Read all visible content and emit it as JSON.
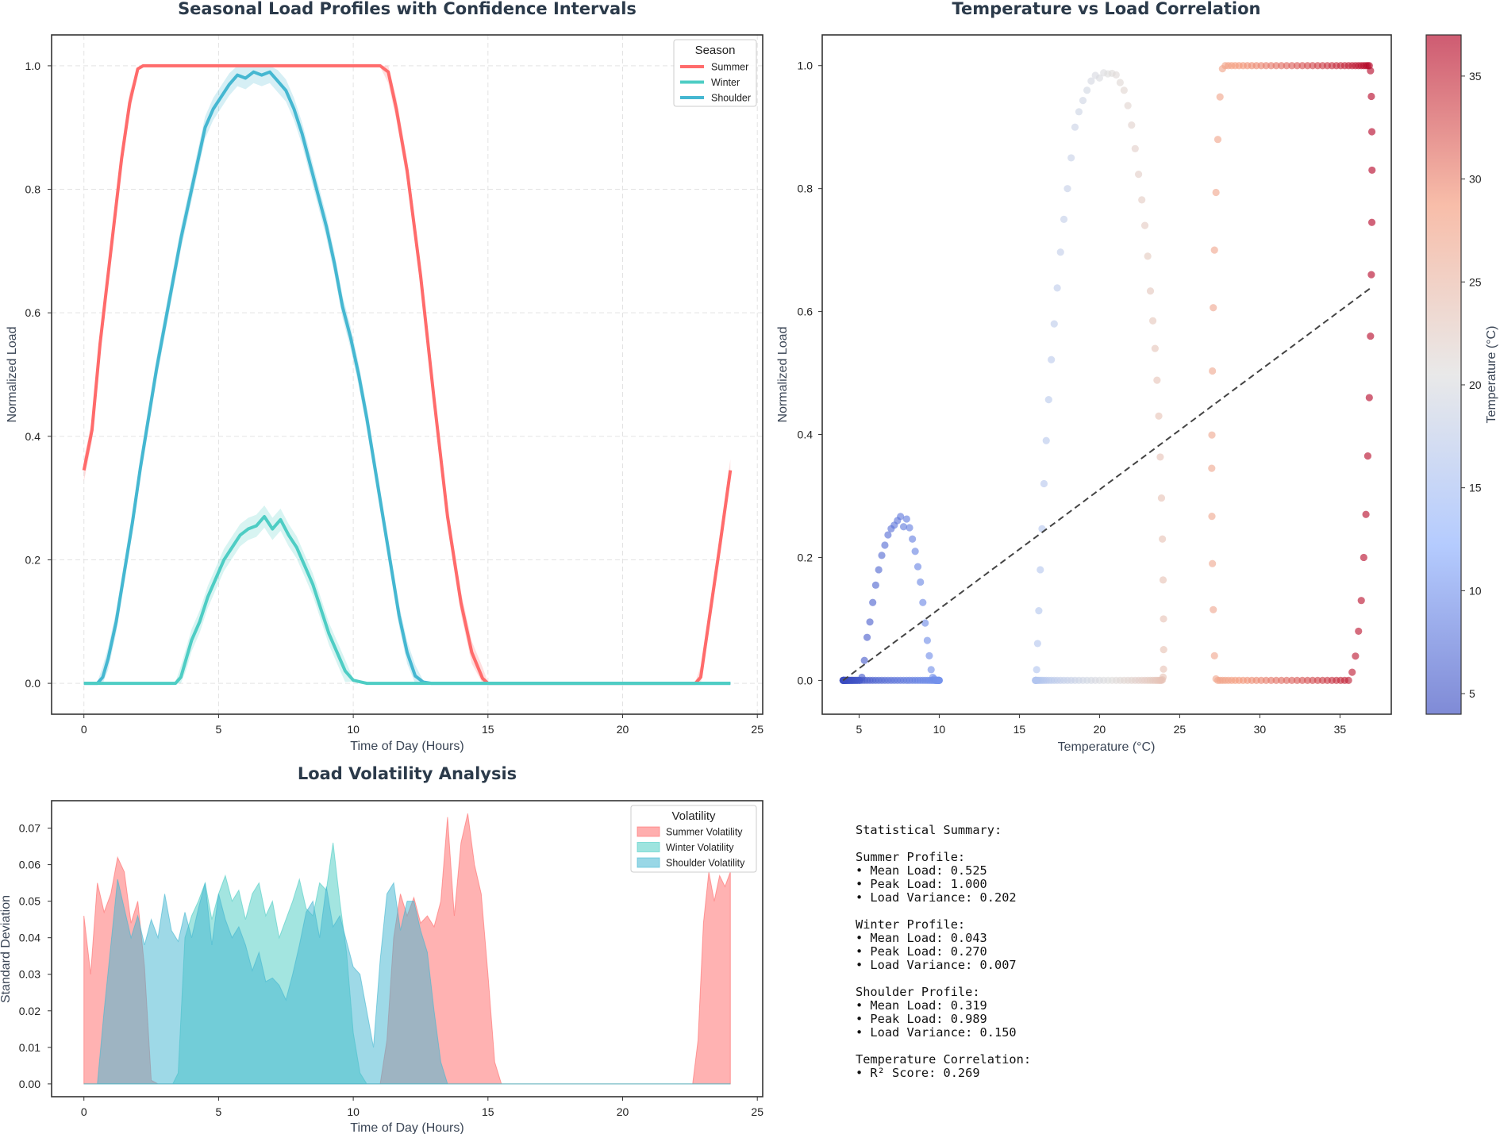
{
  "chart_data": [
    {
      "type": "line",
      "title": "Seasonal Load Profiles with Confidence Intervals",
      "xlabel": "Time of Day (Hours)",
      "ylabel": "Normalized Load",
      "xlim": [
        -1.2,
        25.2
      ],
      "ylim": [
        -0.05,
        1.05
      ],
      "xticks": [
        0,
        5,
        10,
        15,
        20,
        25
      ],
      "yticks": [
        0.0,
        0.2,
        0.4,
        0.6,
        0.8,
        1.0
      ],
      "grid": true,
      "legend": {
        "title": "Season",
        "position": "top-right",
        "entries": [
          "Summer",
          "Winter",
          "Shoulder"
        ]
      },
      "series": [
        {
          "name": "Summer",
          "color": "#ff6b6b",
          "x": [
            0,
            0.3,
            0.6,
            1.0,
            1.4,
            1.7,
            2.0,
            2.2,
            2.5,
            5,
            8,
            10.5,
            11.0,
            11.3,
            11.6,
            12.0,
            12.5,
            13.0,
            13.5,
            14.0,
            14.4,
            14.8,
            15.0,
            15.5,
            20,
            22.7,
            22.9,
            23.2,
            23.6,
            24.0
          ],
          "y": [
            0.345,
            0.41,
            0.55,
            0.7,
            0.85,
            0.94,
            0.995,
            1.0,
            1.0,
            1.0,
            1.0,
            1.0,
            1.0,
            0.99,
            0.93,
            0.83,
            0.66,
            0.46,
            0.27,
            0.13,
            0.05,
            0.008,
            0.0,
            0.0,
            0.0,
            0.0,
            0.01,
            0.1,
            0.22,
            0.345
          ]
        },
        {
          "name": "Winter",
          "color": "#4ecdc4",
          "x": [
            0,
            3.4,
            3.6,
            3.8,
            4.0,
            4.3,
            4.6,
            4.9,
            5.2,
            5.5,
            5.8,
            6.1,
            6.4,
            6.7,
            7.0,
            7.3,
            7.6,
            7.9,
            8.2,
            8.5,
            8.8,
            9.1,
            9.4,
            9.7,
            10.0,
            10.3,
            10.5,
            11,
            24
          ],
          "y": [
            0.0,
            0.0,
            0.01,
            0.04,
            0.07,
            0.1,
            0.14,
            0.17,
            0.2,
            0.22,
            0.24,
            0.25,
            0.255,
            0.27,
            0.25,
            0.265,
            0.24,
            0.22,
            0.19,
            0.16,
            0.12,
            0.08,
            0.05,
            0.02,
            0.005,
            0.002,
            0.0,
            0.0,
            0.0
          ]
        },
        {
          "name": "Shoulder",
          "color": "#45b7d1",
          "x": [
            0,
            0.5,
            0.7,
            0.9,
            1.2,
            1.5,
            1.8,
            2.1,
            2.4,
            2.7,
            3.0,
            3.3,
            3.6,
            3.9,
            4.2,
            4.5,
            4.8,
            5.1,
            5.4,
            5.7,
            6.0,
            6.3,
            6.6,
            6.9,
            7.2,
            7.5,
            7.8,
            8.1,
            8.4,
            8.7,
            9.0,
            9.3,
            9.6,
            9.9,
            10.2,
            10.5,
            10.8,
            11.1,
            11.4,
            11.7,
            12.0,
            12.3,
            12.6,
            12.9,
            13.2,
            13.5,
            24
          ],
          "y": [
            0.0,
            0.0,
            0.01,
            0.04,
            0.1,
            0.18,
            0.26,
            0.35,
            0.43,
            0.51,
            0.58,
            0.65,
            0.72,
            0.78,
            0.84,
            0.9,
            0.93,
            0.95,
            0.97,
            0.985,
            0.98,
            0.99,
            0.985,
            0.99,
            0.975,
            0.96,
            0.93,
            0.89,
            0.84,
            0.79,
            0.74,
            0.68,
            0.61,
            0.56,
            0.5,
            0.43,
            0.35,
            0.27,
            0.19,
            0.11,
            0.05,
            0.012,
            0.002,
            0.0,
            0.0,
            0.0,
            0.0
          ]
        }
      ]
    },
    {
      "type": "scatter",
      "title": "Temperature vs Load Correlation",
      "xlabel": "Temperature (°C)",
      "ylabel": "Normalized Load",
      "xlim": [
        2.7,
        38.2
      ],
      "ylim": [
        -0.055,
        1.05
      ],
      "xticks": [
        5,
        10,
        15,
        20,
        25,
        30,
        35
      ],
      "yticks": [
        0.0,
        0.2,
        0.4,
        0.6,
        0.8,
        1.0
      ],
      "grid": false,
      "colormap": "coolwarm",
      "colorbar": {
        "label": "Temperature (°C)",
        "range": [
          4,
          37
        ],
        "ticks": [
          5,
          10,
          15,
          20,
          25,
          30,
          35
        ]
      },
      "trendline": {
        "x": [
          4,
          37
        ],
        "y": [
          0.0,
          0.64
        ],
        "style": "dashed",
        "color": "#444444"
      },
      "clusters": [
        {
          "season": "Winter",
          "temp_range": [
            4,
            10
          ],
          "peak_load": 0.27
        },
        {
          "season": "Shoulder",
          "temp_range": [
            16,
            24
          ],
          "peak_load": 0.989
        },
        {
          "season": "Summer",
          "temp_range": [
            27,
            37
          ],
          "peak_load": 1.0
        }
      ]
    },
    {
      "type": "area",
      "title": "Load Volatility Analysis",
      "xlabel": "Time of Day (Hours)",
      "ylabel": "Standard Deviation",
      "xlim": [
        -1.2,
        25.2
      ],
      "ylim": [
        -0.0035,
        0.0775
      ],
      "xticks": [
        0,
        5,
        10,
        15,
        20,
        25
      ],
      "yticks": [
        0.0,
        0.01,
        0.02,
        0.03,
        0.04,
        0.05,
        0.06,
        0.07
      ],
      "grid": false,
      "legend": {
        "title": "Volatility",
        "position": "top-right",
        "entries": [
          "Summer Volatility",
          "Winter Volatility",
          "Shoulder Volatility"
        ]
      },
      "series": [
        {
          "name": "Summer Volatility",
          "color": "#ff6b6b",
          "x": [
            0,
            0.25,
            0.5,
            0.75,
            1.0,
            1.25,
            1.5,
            1.75,
            2.0,
            2.25,
            2.5,
            2.75,
            3.0,
            3.25,
            3.5,
            3.75,
            4.0,
            4.25,
            4.5,
            4.75,
            5.0,
            5.25,
            5.5,
            5.75,
            6.0,
            6.25,
            6.5,
            6.75,
            7.0,
            7.25,
            7.5,
            7.75,
            8.0,
            8.25,
            8.5,
            8.75,
            9.0,
            9.25,
            9.5,
            9.75,
            10.0,
            10.25,
            10.5,
            10.75,
            11.0,
            11.25,
            11.5,
            11.75,
            12.0,
            12.25,
            12.5,
            12.75,
            13.0,
            13.25,
            13.5,
            13.75,
            14.0,
            14.25,
            14.5,
            14.75,
            15.0,
            15.25,
            15.5,
            22.6,
            22.8,
            23.0,
            23.2,
            23.4,
            23.6,
            23.8,
            24.0
          ],
          "y": [
            0.046,
            0.03,
            0.055,
            0.047,
            0.052,
            0.062,
            0.058,
            0.044,
            0.05,
            0.032,
            0.001,
            0,
            0,
            0,
            0,
            0,
            0,
            0,
            0,
            0,
            0,
            0,
            0,
            0,
            0,
            0,
            0,
            0,
            0,
            0,
            0,
            0,
            0,
            0,
            0,
            0,
            0,
            0,
            0,
            0,
            0,
            0,
            0,
            0,
            0,
            0.012,
            0.04,
            0.052,
            0.046,
            0.051,
            0.044,
            0.046,
            0.043,
            0.05,
            0.073,
            0.046,
            0.066,
            0.074,
            0.06,
            0.052,
            0.03,
            0.006,
            0.0,
            0.0,
            0.012,
            0.044,
            0.058,
            0.05,
            0.057,
            0.054,
            0.058
          ]
        },
        {
          "name": "Winter Volatility",
          "color": "#4ecdc4",
          "x": [
            0,
            3.3,
            3.5,
            3.75,
            4.0,
            4.25,
            4.5,
            4.75,
            5.0,
            5.25,
            5.5,
            5.75,
            6.0,
            6.25,
            6.5,
            6.75,
            7.0,
            7.25,
            7.5,
            7.75,
            8.0,
            8.25,
            8.5,
            8.75,
            9.0,
            9.25,
            9.5,
            9.75,
            10.0,
            10.25,
            10.5,
            24
          ],
          "y": [
            0,
            0,
            0.003,
            0.04,
            0.046,
            0.05,
            0.055,
            0.045,
            0.052,
            0.057,
            0.05,
            0.053,
            0.045,
            0.052,
            0.055,
            0.046,
            0.05,
            0.04,
            0.045,
            0.05,
            0.056,
            0.048,
            0.046,
            0.055,
            0.053,
            0.066,
            0.05,
            0.036,
            0.014,
            0.003,
            0.0,
            0.0
          ]
        },
        {
          "name": "Shoulder Volatility",
          "color": "#45b7d1",
          "x": [
            0,
            0.5,
            0.75,
            1.0,
            1.25,
            1.5,
            1.75,
            2.0,
            2.25,
            2.5,
            2.75,
            3.0,
            3.25,
            3.5,
            3.75,
            4.0,
            4.25,
            4.5,
            4.75,
            5.0,
            5.25,
            5.5,
            5.75,
            6.0,
            6.25,
            6.5,
            6.75,
            7.0,
            7.25,
            7.5,
            7.75,
            8.0,
            8.25,
            8.5,
            8.75,
            9.0,
            9.25,
            9.5,
            9.75,
            10.0,
            10.25,
            10.5,
            10.75,
            11.0,
            11.25,
            11.5,
            11.75,
            12.0,
            12.25,
            12.5,
            12.75,
            13.0,
            13.25,
            13.5,
            24
          ],
          "y": [
            0,
            0.0,
            0.02,
            0.038,
            0.056,
            0.048,
            0.04,
            0.046,
            0.038,
            0.045,
            0.04,
            0.052,
            0.042,
            0.039,
            0.047,
            0.04,
            0.048,
            0.055,
            0.038,
            0.052,
            0.045,
            0.04,
            0.043,
            0.038,
            0.031,
            0.036,
            0.028,
            0.029,
            0.027,
            0.023,
            0.03,
            0.038,
            0.047,
            0.05,
            0.04,
            0.054,
            0.043,
            0.046,
            0.039,
            0.032,
            0.03,
            0.02,
            0.01,
            0.034,
            0.052,
            0.055,
            0.042,
            0.05,
            0.05,
            0.042,
            0.036,
            0.02,
            0.006,
            0.0,
            0.0
          ]
        }
      ]
    }
  ],
  "stats": {
    "lines": [
      "Statistical Summary:",
      "",
      "Summer Profile:",
      "• Mean Load: 0.525",
      "• Peak Load: 1.000",
      "• Load Variance: 0.202",
      "",
      "Winter Profile:",
      "• Mean Load: 0.043",
      "• Peak Load: 0.270",
      "• Load Variance: 0.007",
      "",
      "Shoulder Profile:",
      "• Mean Load: 0.319",
      "• Peak Load: 0.989",
      "• Load Variance: 0.150",
      "",
      "Temperature Correlation:",
      "• R² Score: 0.269"
    ]
  }
}
